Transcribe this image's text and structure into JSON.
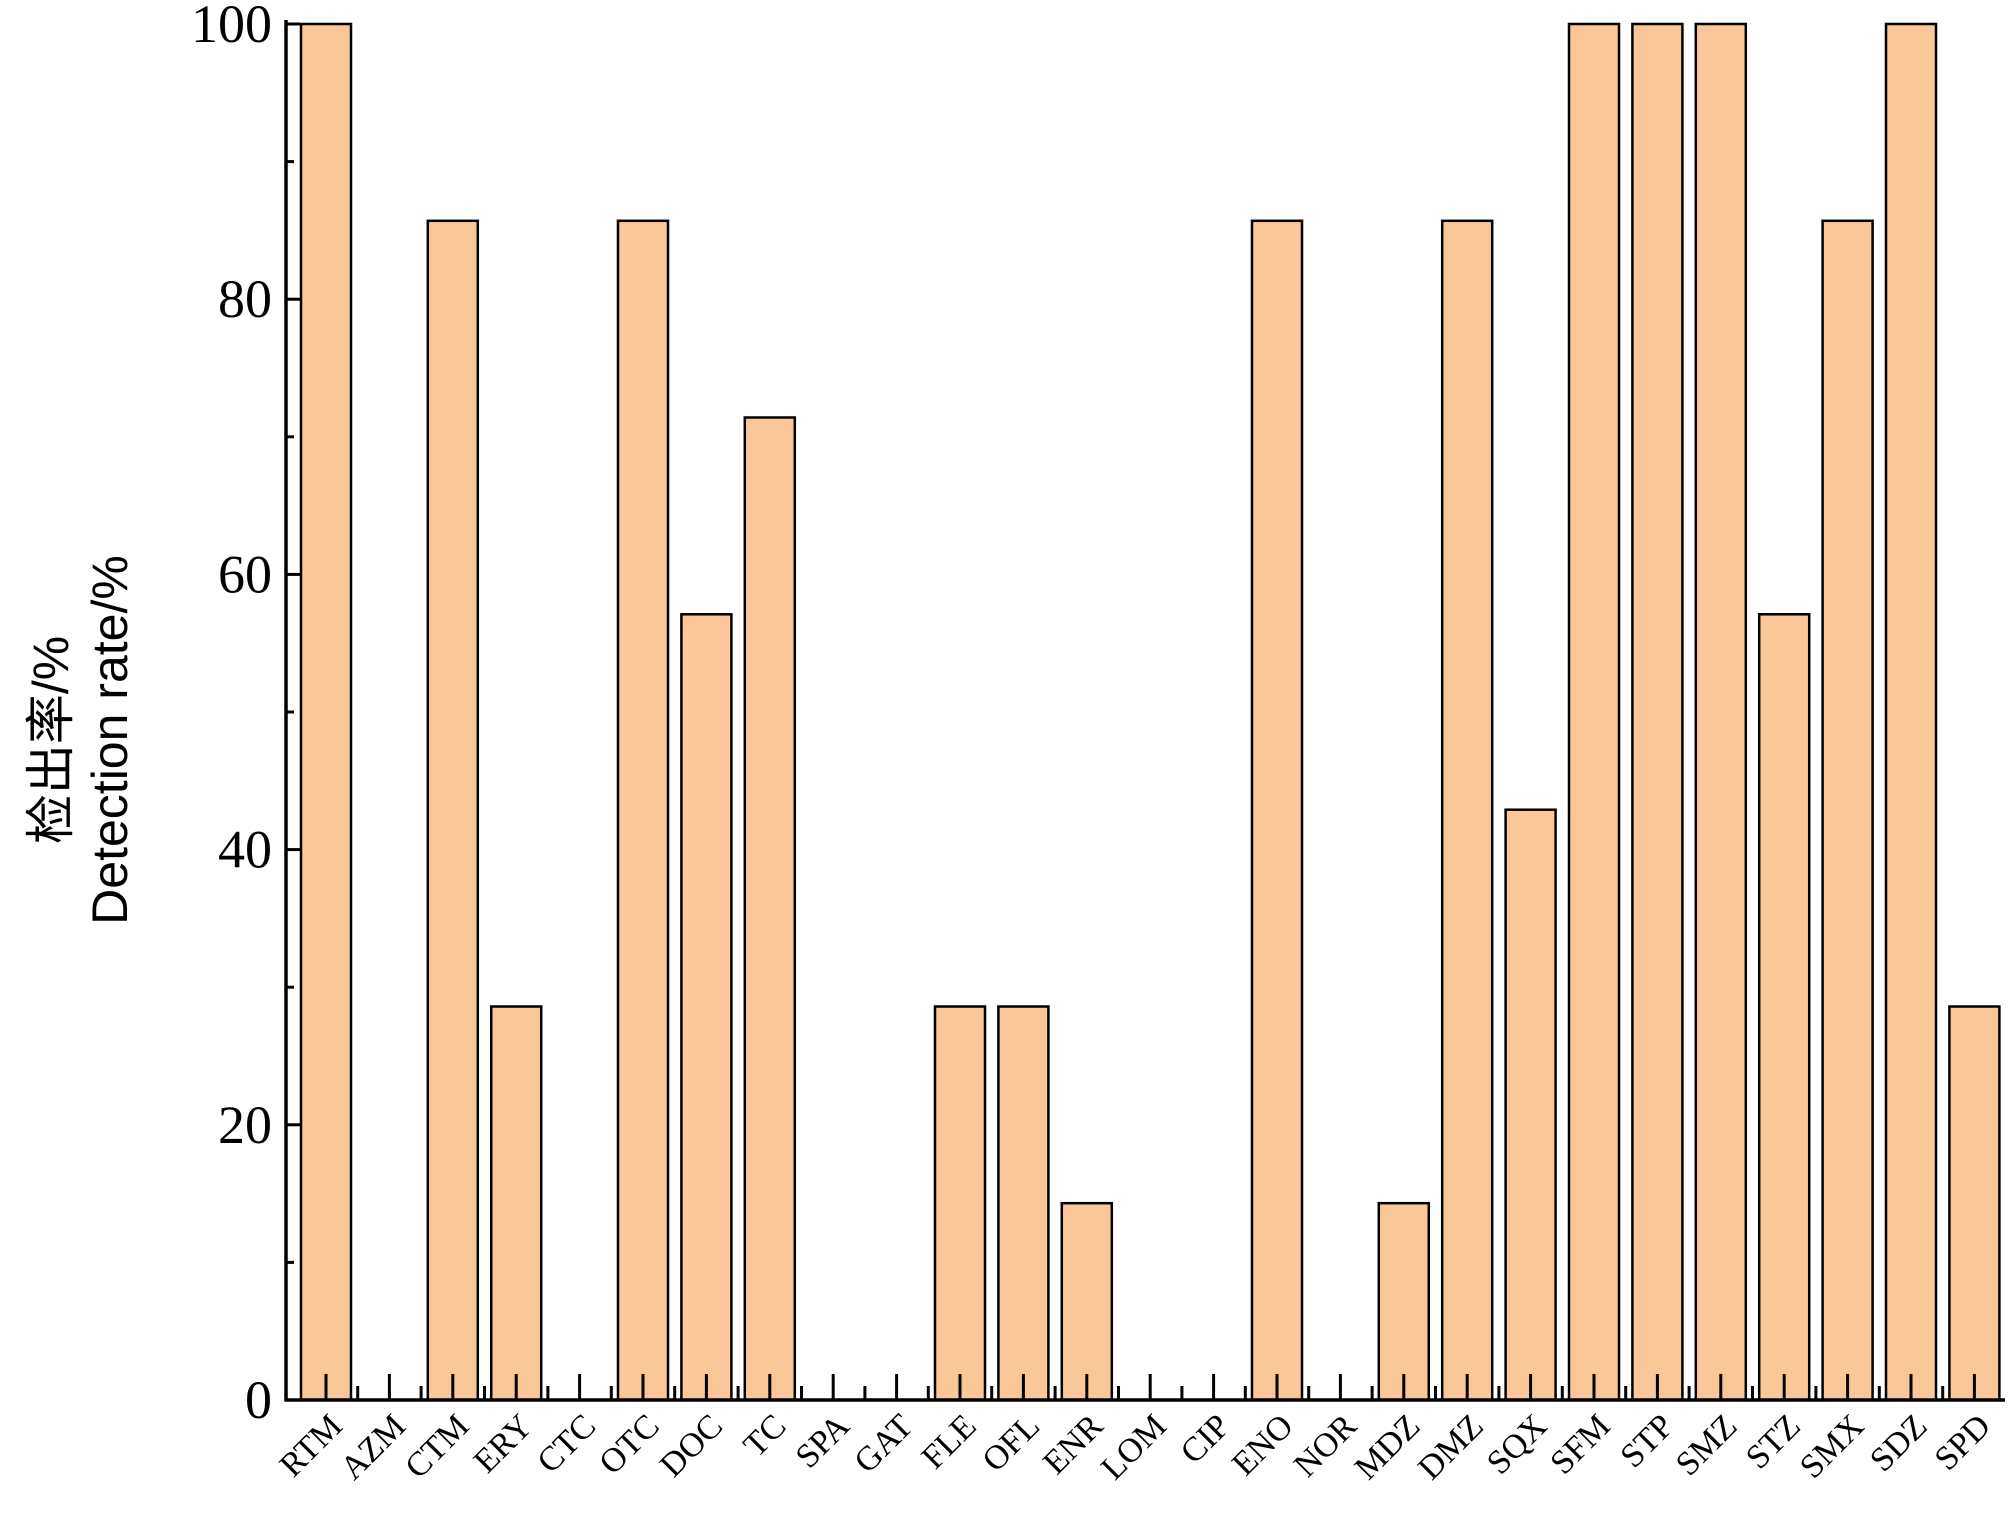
{
  "chart_data": {
    "type": "bar",
    "title": "",
    "xlabel": "",
    "ylabel_zh": "检出率/%",
    "ylabel_en": "Detection rate/%",
    "ylim": [
      0,
      100
    ],
    "yticks": [
      "0",
      "20",
      "40",
      "60",
      "80",
      "100"
    ],
    "grid": false,
    "bar_color": "#FAC898",
    "categories": [
      "RTM",
      "AZM",
      "CTM",
      "ERY",
      "CTC",
      "OTC",
      "DOC",
      "TC",
      "SPA",
      "GAT",
      "FLE",
      "OFL",
      "ENR",
      "LOM",
      "CIP",
      "ENO",
      "NOR",
      "MDZ",
      "DMZ",
      "SQX",
      "SFM",
      "STP",
      "SMZ",
      "STZ",
      "SMX",
      "SDZ",
      "SPD"
    ],
    "values": [
      100,
      0,
      85.7,
      28.6,
      0,
      85.7,
      57.1,
      71.4,
      0,
      0,
      28.6,
      28.6,
      14.3,
      0,
      0,
      85.7,
      0,
      14.3,
      85.7,
      42.9,
      100,
      100,
      100,
      57.1,
      85.7,
      100,
      28.6
    ]
  }
}
